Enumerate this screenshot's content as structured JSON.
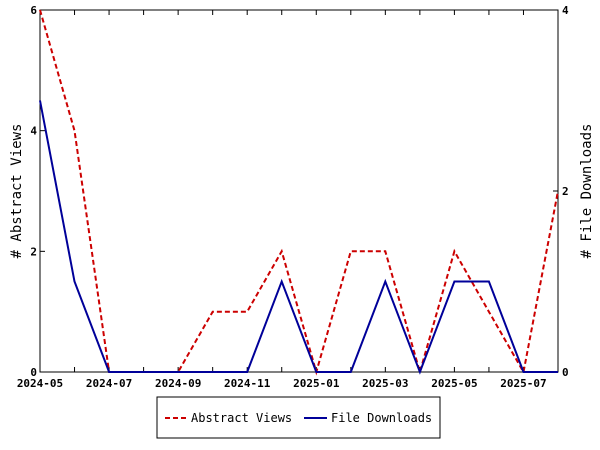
{
  "chart_data": {
    "type": "line",
    "x": [
      "2024-05",
      "2024-06",
      "2024-07",
      "2024-08",
      "2024-09",
      "2024-10",
      "2024-11",
      "2024-12",
      "2025-01",
      "2025-02",
      "2025-03",
      "2025-04",
      "2025-05",
      "2025-06",
      "2025-07",
      "2025-08"
    ],
    "x_tick_labels": [
      "2024-05",
      "2024-07",
      "2024-09",
      "2024-11",
      "2025-01",
      "2025-03",
      "2025-05",
      "2025-07"
    ],
    "series": [
      {
        "name": "Abstract Views",
        "axis": "left",
        "color": "#cc0000",
        "style": "dashed",
        "values": [
          6,
          4,
          0,
          0,
          0,
          1,
          1,
          2,
          0,
          2,
          2,
          0,
          2,
          1,
          0,
          3
        ]
      },
      {
        "name": "File Downloads",
        "axis": "right",
        "color": "#000099",
        "style": "solid",
        "values": [
          3,
          1,
          0,
          0,
          0,
          0,
          0,
          1,
          0,
          0,
          1,
          0,
          1,
          1,
          0,
          0
        ]
      }
    ],
    "ylabel_left": "# Abstract Views",
    "ylabel_right": "# File Downloads",
    "ylim_left": [
      0,
      6
    ],
    "ylim_right": [
      0,
      4
    ],
    "yticks_left": [
      "0",
      "2",
      "4",
      "6"
    ],
    "yticks_right": [
      "0",
      "2",
      "4"
    ],
    "grid": false,
    "legend_position": "bottom-center"
  }
}
